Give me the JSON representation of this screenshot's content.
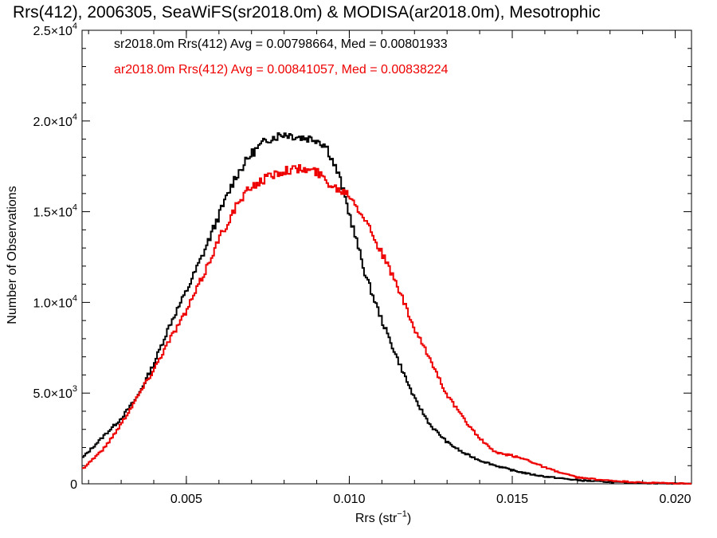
{
  "chart_data": {
    "type": "line",
    "step": true,
    "title": "Rrs(412), 2006305, SeaWiFS(sr2018.0m) & MODISA(ar2018.0m), Mesotrophic",
    "xlabel": "Rrs (str",
    "xlabel_exp": "−1",
    "xlabel_close": ")",
    "ylabel": "Number of Observations",
    "xlim": [
      0.0018,
      0.0205
    ],
    "ylim": [
      0,
      25000
    ],
    "x_ticks": [
      0.005,
      0.01,
      0.015,
      0.02
    ],
    "x_tick_labels": [
      "0.005",
      "0.010",
      "0.015",
      "0.020"
    ],
    "y_ticks": [
      {
        "value": 0,
        "mantissa": "0",
        "exp": ""
      },
      {
        "value": 5000,
        "mantissa": "5.0×10",
        "exp": "3"
      },
      {
        "value": 10000,
        "mantissa": "1.0×10",
        "exp": "4"
      },
      {
        "value": 15000,
        "mantissa": "1.5×10",
        "exp": "4"
      },
      {
        "value": 20000,
        "mantissa": "2.0×10",
        "exp": "4"
      },
      {
        "value": 25000,
        "mantissa": "2.5×10",
        "exp": "4"
      }
    ],
    "grid": false,
    "legend_position": "top-left",
    "annotations": [
      {
        "text": "sr2018.0m Rrs(412) Avg = 0.00798664, Med = 0.00801933",
        "color": "#000000"
      },
      {
        "text": "ar2018.0m Rrs(412) Avg = 0.00841057, Med = 0.00838224",
        "color": "#ee0000"
      }
    ],
    "series": [
      {
        "color": "#000000",
        "points": [
          [
            0.0018,
            1400
          ],
          [
            0.0025,
            2700
          ],
          [
            0.003,
            3600
          ],
          [
            0.0035,
            4800
          ],
          [
            0.004,
            6600
          ],
          [
            0.0045,
            8800
          ],
          [
            0.005,
            10600
          ],
          [
            0.0055,
            12600
          ],
          [
            0.006,
            14800
          ],
          [
            0.0065,
            16900
          ],
          [
            0.007,
            18200
          ],
          [
            0.0075,
            19000
          ],
          [
            0.008,
            19300
          ],
          [
            0.0085,
            19100
          ],
          [
            0.009,
            19000
          ],
          [
            0.0093,
            18600
          ],
          [
            0.0097,
            16900
          ],
          [
            0.01,
            14900
          ],
          [
            0.0105,
            11500
          ],
          [
            0.011,
            9000
          ],
          [
            0.0115,
            6800
          ],
          [
            0.012,
            4700
          ],
          [
            0.0125,
            3200
          ],
          [
            0.013,
            2300
          ],
          [
            0.0135,
            1700
          ],
          [
            0.014,
            1300
          ],
          [
            0.0145,
            1000
          ],
          [
            0.015,
            750
          ],
          [
            0.0155,
            550
          ],
          [
            0.016,
            400
          ],
          [
            0.017,
            200
          ],
          [
            0.018,
            100
          ],
          [
            0.019,
            40
          ],
          [
            0.0205,
            5
          ]
        ]
      },
      {
        "color": "#ee0000",
        "points": [
          [
            0.0018,
            800
          ],
          [
            0.0025,
            2000
          ],
          [
            0.003,
            3300
          ],
          [
            0.0035,
            4800
          ],
          [
            0.004,
            6300
          ],
          [
            0.0045,
            8000
          ],
          [
            0.005,
            9500
          ],
          [
            0.0055,
            11400
          ],
          [
            0.006,
            13500
          ],
          [
            0.0065,
            15200
          ],
          [
            0.007,
            16400
          ],
          [
            0.0075,
            16900
          ],
          [
            0.008,
            17300
          ],
          [
            0.0085,
            17350
          ],
          [
            0.009,
            17200
          ],
          [
            0.0095,
            16400
          ],
          [
            0.01,
            16000
          ],
          [
            0.0105,
            14600
          ],
          [
            0.011,
            12700
          ],
          [
            0.0115,
            10800
          ],
          [
            0.012,
            8500
          ],
          [
            0.0125,
            6800
          ],
          [
            0.013,
            4900
          ],
          [
            0.0135,
            3600
          ],
          [
            0.014,
            2500
          ],
          [
            0.0145,
            1700
          ],
          [
            0.015,
            1550
          ],
          [
            0.0155,
            1300
          ],
          [
            0.016,
            900
          ],
          [
            0.0165,
            600
          ],
          [
            0.017,
            350
          ],
          [
            0.018,
            170
          ],
          [
            0.019,
            60
          ],
          [
            0.0205,
            5
          ]
        ]
      }
    ]
  }
}
